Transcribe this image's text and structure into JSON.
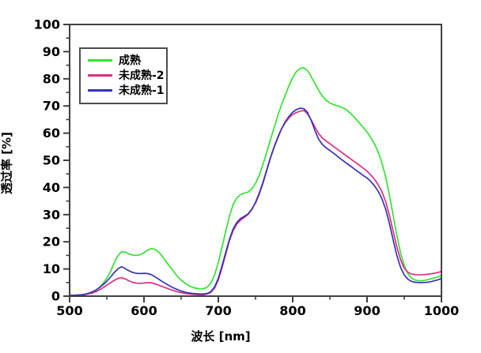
{
  "figure": {
    "background": "#ffffff",
    "frame_color": "#404040",
    "text_color": "#000000"
  },
  "legend": {
    "position": "top-left",
    "items": [
      {
        "label": "成熟",
        "color": "#33e433"
      },
      {
        "label": "未成熟-2",
        "color": "#df2e7e"
      },
      {
        "label": "未成熟-1",
        "color": "#3333b8"
      }
    ]
  },
  "chart_data": {
    "type": "line",
    "title": "",
    "xlabel": "波长 [nm]",
    "ylabel": "透过率 [%]",
    "xlim": [
      500,
      1000
    ],
    "ylim": [
      0,
      100
    ],
    "grid": false,
    "legend_position": "top-left",
    "x_major_ticks": [
      500,
      600,
      700,
      800,
      900,
      1000
    ],
    "x_minor_ticks": [
      550,
      650,
      750,
      850,
      950
    ],
    "y_major_ticks": [
      0,
      10,
      20,
      30,
      40,
      50,
      60,
      70,
      80,
      90,
      100
    ],
    "y_minor_ticks": [
      5,
      15,
      25,
      35,
      45,
      55,
      65,
      75,
      85,
      95
    ],
    "series": [
      {
        "name": "成熟",
        "color": "#33e433",
        "points": [
          [
            500,
            0.3
          ],
          [
            505,
            0.3
          ],
          [
            510,
            0.3
          ],
          [
            515,
            0.4
          ],
          [
            520,
            0.6
          ],
          [
            525,
            0.9
          ],
          [
            530,
            1.4
          ],
          [
            535,
            2.1
          ],
          [
            540,
            3.2
          ],
          [
            545,
            4.7
          ],
          [
            550,
            6.6
          ],
          [
            555,
            9.0
          ],
          [
            560,
            12.3
          ],
          [
            565,
            14.9
          ],
          [
            570,
            16.4
          ],
          [
            575,
            16.2
          ],
          [
            580,
            15.5
          ],
          [
            585,
            15.1
          ],
          [
            590,
            15.0
          ],
          [
            595,
            15.3
          ],
          [
            600,
            16.0
          ],
          [
            605,
            17.0
          ],
          [
            610,
            17.5
          ],
          [
            615,
            17.2
          ],
          [
            620,
            16.2
          ],
          [
            625,
            14.6
          ],
          [
            630,
            12.6
          ],
          [
            635,
            10.8
          ],
          [
            640,
            9.0
          ],
          [
            645,
            7.3
          ],
          [
            650,
            5.9
          ],
          [
            655,
            4.8
          ],
          [
            660,
            3.9
          ],
          [
            665,
            3.3
          ],
          [
            670,
            2.9
          ],
          [
            675,
            2.7
          ],
          [
            680,
            2.7
          ],
          [
            685,
            3.3
          ],
          [
            690,
            4.8
          ],
          [
            695,
            7.8
          ],
          [
            700,
            12.5
          ],
          [
            705,
            18.0
          ],
          [
            710,
            24.0
          ],
          [
            715,
            29.5
          ],
          [
            720,
            33.8
          ],
          [
            725,
            36.2
          ],
          [
            730,
            37.4
          ],
          [
            735,
            37.9
          ],
          [
            740,
            38.3
          ],
          [
            745,
            39.5
          ],
          [
            750,
            41.5
          ],
          [
            755,
            44.5
          ],
          [
            760,
            48.5
          ],
          [
            765,
            53.0
          ],
          [
            770,
            57.5
          ],
          [
            775,
            62.0
          ],
          [
            780,
            66.5
          ],
          [
            785,
            70.5
          ],
          [
            790,
            74.0
          ],
          [
            795,
            77.5
          ],
          [
            800,
            80.5
          ],
          [
            805,
            82.7
          ],
          [
            810,
            83.8
          ],
          [
            815,
            84.1
          ],
          [
            820,
            83.0
          ],
          [
            825,
            80.7
          ],
          [
            830,
            78.2
          ],
          [
            835,
            75.7
          ],
          [
            840,
            73.6
          ],
          [
            845,
            72.1
          ],
          [
            850,
            71.1
          ],
          [
            855,
            70.5
          ],
          [
            860,
            70.1
          ],
          [
            865,
            69.6
          ],
          [
            870,
            69.0
          ],
          [
            875,
            68.0
          ],
          [
            880,
            66.7
          ],
          [
            885,
            65.2
          ],
          [
            890,
            63.6
          ],
          [
            895,
            62.0
          ],
          [
            900,
            60.4
          ],
          [
            905,
            58.4
          ],
          [
            910,
            56.0
          ],
          [
            915,
            53.0
          ],
          [
            920,
            49.0
          ],
          [
            925,
            43.8
          ],
          [
            930,
            37.2
          ],
          [
            935,
            29.8
          ],
          [
            940,
            22.5
          ],
          [
            945,
            16.0
          ],
          [
            950,
            11.2
          ],
          [
            955,
            8.2
          ],
          [
            960,
            6.6
          ],
          [
            965,
            5.9
          ],
          [
            970,
            5.6
          ],
          [
            975,
            5.7
          ],
          [
            980,
            6.0
          ],
          [
            985,
            6.3
          ],
          [
            990,
            6.7
          ],
          [
            995,
            7.1
          ],
          [
            1000,
            7.6
          ]
        ]
      },
      {
        "name": "未成熟-2",
        "color": "#df2e7e",
        "points": [
          [
            500,
            0.2
          ],
          [
            505,
            0.2
          ],
          [
            510,
            0.3
          ],
          [
            515,
            0.4
          ],
          [
            520,
            0.5
          ],
          [
            525,
            0.8
          ],
          [
            530,
            1.1
          ],
          [
            535,
            1.6
          ],
          [
            540,
            2.3
          ],
          [
            545,
            3.1
          ],
          [
            550,
            4.0
          ],
          [
            555,
            4.9
          ],
          [
            560,
            5.8
          ],
          [
            565,
            6.5
          ],
          [
            570,
            6.8
          ],
          [
            575,
            6.3
          ],
          [
            580,
            5.6
          ],
          [
            585,
            5.1
          ],
          [
            590,
            4.8
          ],
          [
            595,
            4.7
          ],
          [
            600,
            4.8
          ],
          [
            605,
            5.0
          ],
          [
            610,
            4.9
          ],
          [
            615,
            4.5
          ],
          [
            620,
            4.0
          ],
          [
            625,
            3.5
          ],
          [
            630,
            3.0
          ],
          [
            635,
            2.5
          ],
          [
            640,
            2.0
          ],
          [
            645,
            1.6
          ],
          [
            650,
            1.3
          ],
          [
            655,
            1.0
          ],
          [
            660,
            0.8
          ],
          [
            665,
            0.7
          ],
          [
            670,
            0.6
          ],
          [
            675,
            0.5
          ],
          [
            680,
            0.5
          ],
          [
            685,
            0.8
          ],
          [
            690,
            1.4
          ],
          [
            695,
            3.0
          ],
          [
            700,
            6.0
          ],
          [
            705,
            10.5
          ],
          [
            710,
            15.5
          ],
          [
            715,
            20.5
          ],
          [
            720,
            24.2
          ],
          [
            725,
            26.6
          ],
          [
            730,
            28.0
          ],
          [
            735,
            29.0
          ],
          [
            740,
            30.1
          ],
          [
            745,
            31.9
          ],
          [
            750,
            34.6
          ],
          [
            755,
            38.0
          ],
          [
            760,
            42.0
          ],
          [
            765,
            46.5
          ],
          [
            770,
            51.0
          ],
          [
            775,
            55.0
          ],
          [
            780,
            58.6
          ],
          [
            785,
            61.6
          ],
          [
            790,
            63.9
          ],
          [
            795,
            65.6
          ],
          [
            800,
            66.9
          ],
          [
            805,
            67.6
          ],
          [
            810,
            68.1
          ],
          [
            815,
            68.3
          ],
          [
            820,
            67.1
          ],
          [
            825,
            64.8
          ],
          [
            830,
            62.2
          ],
          [
            835,
            59.8
          ],
          [
            840,
            58.2
          ],
          [
            845,
            57.1
          ],
          [
            850,
            56.1
          ],
          [
            855,
            55.1
          ],
          [
            860,
            54.1
          ],
          [
            865,
            53.1
          ],
          [
            870,
            52.1
          ],
          [
            875,
            51.1
          ],
          [
            880,
            50.1
          ],
          [
            885,
            49.1
          ],
          [
            890,
            48.1
          ],
          [
            895,
            47.1
          ],
          [
            900,
            46.0
          ],
          [
            905,
            44.6
          ],
          [
            910,
            43.0
          ],
          [
            915,
            41.0
          ],
          [
            920,
            38.4
          ],
          [
            925,
            34.8
          ],
          [
            930,
            29.8
          ],
          [
            935,
            24.0
          ],
          [
            940,
            18.2
          ],
          [
            945,
            13.4
          ],
          [
            950,
            10.3
          ],
          [
            955,
            8.8
          ],
          [
            960,
            8.1
          ],
          [
            965,
            7.9
          ],
          [
            970,
            7.8
          ],
          [
            975,
            7.9
          ],
          [
            980,
            8.0
          ],
          [
            985,
            8.2
          ],
          [
            990,
            8.4
          ],
          [
            995,
            8.7
          ],
          [
            1000,
            9.1
          ]
        ]
      },
      {
        "name": "未成熟-1",
        "color": "#3333b8",
        "points": [
          [
            500,
            0.3
          ],
          [
            505,
            0.3
          ],
          [
            510,
            0.4
          ],
          [
            515,
            0.5
          ],
          [
            520,
            0.7
          ],
          [
            525,
            1.0
          ],
          [
            530,
            1.5
          ],
          [
            535,
            2.2
          ],
          [
            540,
            3.1
          ],
          [
            545,
            4.2
          ],
          [
            550,
            5.5
          ],
          [
            555,
            7.0
          ],
          [
            560,
            8.7
          ],
          [
            565,
            10.1
          ],
          [
            570,
            10.8
          ],
          [
            575,
            10.1
          ],
          [
            580,
            9.3
          ],
          [
            585,
            8.7
          ],
          [
            590,
            8.4
          ],
          [
            595,
            8.3
          ],
          [
            600,
            8.4
          ],
          [
            605,
            8.3
          ],
          [
            610,
            7.9
          ],
          [
            615,
            7.1
          ],
          [
            620,
            6.2
          ],
          [
            625,
            5.3
          ],
          [
            630,
            4.5
          ],
          [
            635,
            3.7
          ],
          [
            640,
            3.0
          ],
          [
            645,
            2.4
          ],
          [
            650,
            1.9
          ],
          [
            655,
            1.5
          ],
          [
            660,
            1.2
          ],
          [
            665,
            1.0
          ],
          [
            670,
            0.9
          ],
          [
            675,
            0.8
          ],
          [
            680,
            0.8
          ],
          [
            685,
            1.0
          ],
          [
            690,
            1.7
          ],
          [
            695,
            3.4
          ],
          [
            700,
            6.6
          ],
          [
            705,
            11.2
          ],
          [
            710,
            16.2
          ],
          [
            715,
            21.0
          ],
          [
            720,
            24.8
          ],
          [
            725,
            27.2
          ],
          [
            730,
            28.6
          ],
          [
            735,
            29.4
          ],
          [
            740,
            30.3
          ],
          [
            745,
            32.0
          ],
          [
            750,
            34.3
          ],
          [
            755,
            37.6
          ],
          [
            760,
            41.6
          ],
          [
            765,
            46.2
          ],
          [
            770,
            50.8
          ],
          [
            775,
            54.8
          ],
          [
            780,
            58.3
          ],
          [
            785,
            61.6
          ],
          [
            790,
            64.2
          ],
          [
            795,
            66.2
          ],
          [
            800,
            67.7
          ],
          [
            805,
            68.7
          ],
          [
            810,
            69.2
          ],
          [
            815,
            69.0
          ],
          [
            820,
            67.6
          ],
          [
            825,
            64.6
          ],
          [
            830,
            60.9
          ],
          [
            835,
            57.7
          ],
          [
            840,
            55.8
          ],
          [
            845,
            54.6
          ],
          [
            850,
            53.6
          ],
          [
            855,
            52.6
          ],
          [
            860,
            51.5
          ],
          [
            865,
            50.4
          ],
          [
            870,
            49.4
          ],
          [
            875,
            48.4
          ],
          [
            880,
            47.4
          ],
          [
            885,
            46.4
          ],
          [
            890,
            45.4
          ],
          [
            895,
            44.4
          ],
          [
            900,
            43.5
          ],
          [
            905,
            42.2
          ],
          [
            910,
            40.6
          ],
          [
            915,
            38.6
          ],
          [
            920,
            35.8
          ],
          [
            925,
            32.0
          ],
          [
            930,
            26.8
          ],
          [
            935,
            20.8
          ],
          [
            940,
            15.0
          ],
          [
            945,
            10.6
          ],
          [
            950,
            7.8
          ],
          [
            955,
            6.2
          ],
          [
            960,
            5.4
          ],
          [
            965,
            5.1
          ],
          [
            970,
            5.0
          ],
          [
            975,
            5.0
          ],
          [
            980,
            5.1
          ],
          [
            985,
            5.3
          ],
          [
            990,
            5.6
          ],
          [
            995,
            6.0
          ],
          [
            1000,
            6.5
          ]
        ]
      }
    ]
  }
}
